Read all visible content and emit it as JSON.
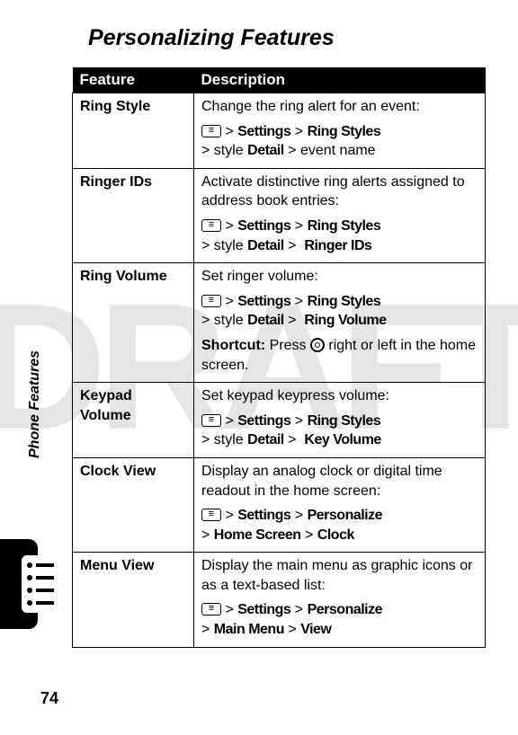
{
  "page": {
    "title": "Personalizing Features",
    "side_label": "Phone Features",
    "page_number": "74",
    "watermark": "DRAFT"
  },
  "table": {
    "header": {
      "feature": "Feature",
      "description": "Description"
    },
    "rows": [
      {
        "name": "Ring Style",
        "intro": "Change the ring alert for an event:",
        "path1a": "Settings",
        "path1b": "Ring Styles",
        "path2a": "style",
        "path2b": "Detail",
        "path2c": "event name"
      },
      {
        "name": "Ringer IDs",
        "intro": "Activate distinctive ring alerts assigned to address book entries:",
        "path1a": "Settings",
        "path1b": "Ring Styles",
        "path2a": "style",
        "path2b": "Detail",
        "path2c": "Ringer IDs"
      },
      {
        "name": "Ring Volume",
        "intro": "Set ringer volume:",
        "path1a": "Settings",
        "path1b": "Ring Styles",
        "path2a": "style",
        "path2b": "Detail",
        "path2c": "Ring Volume",
        "shortcut_label": "Shortcut:",
        "shortcut_pre": "Press",
        "shortcut_post": "right or left in the home screen."
      },
      {
        "name": "Keypad Volume",
        "intro": "Set keypad keypress volume:",
        "path1a": "Settings",
        "path1b": "Ring Styles",
        "path2a": "style",
        "path2b": "Detail",
        "path2c": "Key Volume"
      },
      {
        "name": "Clock View",
        "intro": "Display an analog clock or digital time readout in the home screen:",
        "path1a": "Settings",
        "path1b": "Personalize",
        "p2a": "Home Screen",
        "p2b": "Clock"
      },
      {
        "name": "Menu View",
        "intro": "Display the main menu as graphic icons or as a text-based list:",
        "path1a": "Settings",
        "path1b": "Personalize",
        "p2a": "Main Menu",
        "p2b": "View"
      }
    ]
  }
}
